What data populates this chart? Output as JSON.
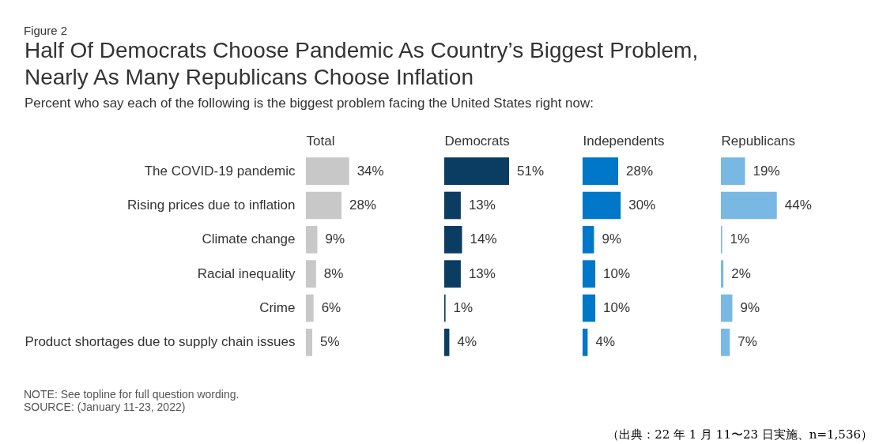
{
  "chart_data": [
    {
      "type": "bar",
      "orientation": "horizontal",
      "title": "Half Of Democrats Choose Pandemic As Country’s Biggest Problem, Nearly As Many Republicans Choose Inflation",
      "subtitle": "Percent who say each of the following is the biggest problem facing the United States right now:",
      "annotations": [
        "Figure 2",
        "NOTE: See topline for full question wording.",
        "SOURCE: (January 11-23, 2022)",
        "（出典：22 年 1 月 11〜23 日実施、n=1,536）"
      ],
      "xlabel": "Total",
      "categories": [
        "The COVID-19 pandemic",
        "Rising prices due to inflation",
        "Climate change",
        "Racial inequality",
        "Crime",
        "Product shortages due to supply chain issues"
      ],
      "values": [
        34,
        28,
        9,
        8,
        6,
        5
      ],
      "value_labels": [
        "34%",
        "28%",
        "9%",
        "8%",
        "6%",
        "5%"
      ],
      "color": "#c8c8c8",
      "tick_labels": "y"
    },
    {
      "type": "bar",
      "orientation": "horizontal",
      "xlabel": "Democrats",
      "categories": [
        null,
        null,
        null,
        null,
        null,
        null
      ],
      "values": [
        51,
        13,
        14,
        13,
        1,
        4
      ],
      "value_labels": [
        "51%",
        "13%",
        "14%",
        "13%",
        "1%",
        "4%"
      ],
      "color": "#0b3c61",
      "tick_labels": false
    },
    {
      "type": "bar",
      "orientation": "horizontal",
      "xlabel": "Independents",
      "categories": [
        null,
        null,
        null,
        null,
        null,
        null
      ],
      "values": [
        28,
        30,
        9,
        10,
        10,
        4
      ],
      "value_labels": [
        "28%",
        "30%",
        "9%",
        "10%",
        "10%",
        "4%"
      ],
      "color": "#0077c8",
      "tick_labels": false
    },
    {
      "type": "bar",
      "orientation": "horizontal",
      "xlabel": "Republicans",
      "categories": [
        null,
        null,
        null,
        null,
        null,
        null
      ],
      "values": [
        19,
        44,
        1,
        2,
        9,
        7
      ],
      "value_labels": [
        "19%",
        "44%",
        "1%",
        "2%",
        "9%",
        "7%"
      ],
      "color": "#7ab8e4",
      "tick_labels": false
    }
  ]
}
